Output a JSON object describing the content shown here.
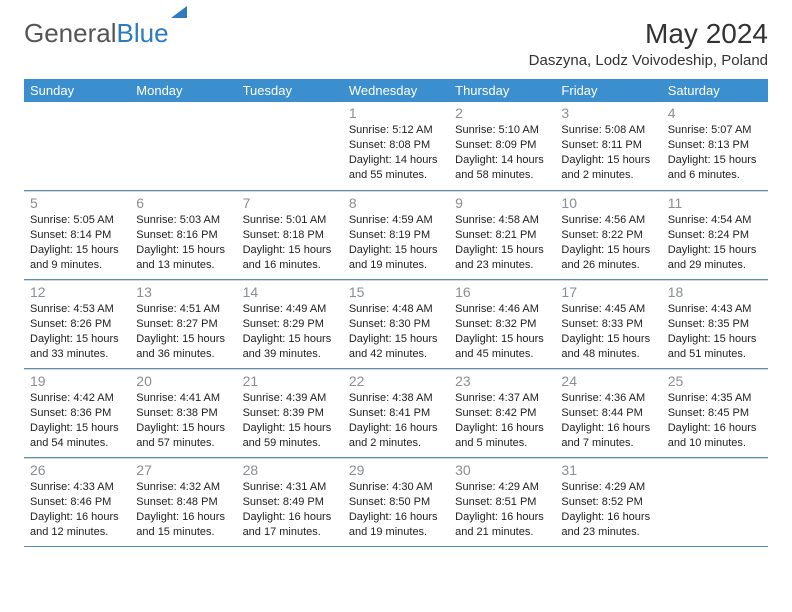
{
  "logo": {
    "part1": "General",
    "part2": "Blue"
  },
  "title": "May 2024",
  "location": "Daszyna, Lodz Voivodeship, Poland",
  "day_headers": [
    "Sunday",
    "Monday",
    "Tuesday",
    "Wednesday",
    "Thursday",
    "Friday",
    "Saturday"
  ],
  "colors": {
    "header_bg": "#3b8fcf",
    "header_text": "#ffffff",
    "daynum": "#8a8f93",
    "text": "#222222",
    "border": "#5a8fb5",
    "cell_border": "#d0d8de"
  },
  "weeks": [
    [
      null,
      null,
      null,
      {
        "n": "1",
        "sr": "5:12 AM",
        "ss": "8:08 PM",
        "dl": "14 hours and 55 minutes."
      },
      {
        "n": "2",
        "sr": "5:10 AM",
        "ss": "8:09 PM",
        "dl": "14 hours and 58 minutes."
      },
      {
        "n": "3",
        "sr": "5:08 AM",
        "ss": "8:11 PM",
        "dl": "15 hours and 2 minutes."
      },
      {
        "n": "4",
        "sr": "5:07 AM",
        "ss": "8:13 PM",
        "dl": "15 hours and 6 minutes."
      }
    ],
    [
      {
        "n": "5",
        "sr": "5:05 AM",
        "ss": "8:14 PM",
        "dl": "15 hours and 9 minutes."
      },
      {
        "n": "6",
        "sr": "5:03 AM",
        "ss": "8:16 PM",
        "dl": "15 hours and 13 minutes."
      },
      {
        "n": "7",
        "sr": "5:01 AM",
        "ss": "8:18 PM",
        "dl": "15 hours and 16 minutes."
      },
      {
        "n": "8",
        "sr": "4:59 AM",
        "ss": "8:19 PM",
        "dl": "15 hours and 19 minutes."
      },
      {
        "n": "9",
        "sr": "4:58 AM",
        "ss": "8:21 PM",
        "dl": "15 hours and 23 minutes."
      },
      {
        "n": "10",
        "sr": "4:56 AM",
        "ss": "8:22 PM",
        "dl": "15 hours and 26 minutes."
      },
      {
        "n": "11",
        "sr": "4:54 AM",
        "ss": "8:24 PM",
        "dl": "15 hours and 29 minutes."
      }
    ],
    [
      {
        "n": "12",
        "sr": "4:53 AM",
        "ss": "8:26 PM",
        "dl": "15 hours and 33 minutes."
      },
      {
        "n": "13",
        "sr": "4:51 AM",
        "ss": "8:27 PM",
        "dl": "15 hours and 36 minutes."
      },
      {
        "n": "14",
        "sr": "4:49 AM",
        "ss": "8:29 PM",
        "dl": "15 hours and 39 minutes."
      },
      {
        "n": "15",
        "sr": "4:48 AM",
        "ss": "8:30 PM",
        "dl": "15 hours and 42 minutes."
      },
      {
        "n": "16",
        "sr": "4:46 AM",
        "ss": "8:32 PM",
        "dl": "15 hours and 45 minutes."
      },
      {
        "n": "17",
        "sr": "4:45 AM",
        "ss": "8:33 PM",
        "dl": "15 hours and 48 minutes."
      },
      {
        "n": "18",
        "sr": "4:43 AM",
        "ss": "8:35 PM",
        "dl": "15 hours and 51 minutes."
      }
    ],
    [
      {
        "n": "19",
        "sr": "4:42 AM",
        "ss": "8:36 PM",
        "dl": "15 hours and 54 minutes."
      },
      {
        "n": "20",
        "sr": "4:41 AM",
        "ss": "8:38 PM",
        "dl": "15 hours and 57 minutes."
      },
      {
        "n": "21",
        "sr": "4:39 AM",
        "ss": "8:39 PM",
        "dl": "15 hours and 59 minutes."
      },
      {
        "n": "22",
        "sr": "4:38 AM",
        "ss": "8:41 PM",
        "dl": "16 hours and 2 minutes."
      },
      {
        "n": "23",
        "sr": "4:37 AM",
        "ss": "8:42 PM",
        "dl": "16 hours and 5 minutes."
      },
      {
        "n": "24",
        "sr": "4:36 AM",
        "ss": "8:44 PM",
        "dl": "16 hours and 7 minutes."
      },
      {
        "n": "25",
        "sr": "4:35 AM",
        "ss": "8:45 PM",
        "dl": "16 hours and 10 minutes."
      }
    ],
    [
      {
        "n": "26",
        "sr": "4:33 AM",
        "ss": "8:46 PM",
        "dl": "16 hours and 12 minutes."
      },
      {
        "n": "27",
        "sr": "4:32 AM",
        "ss": "8:48 PM",
        "dl": "16 hours and 15 minutes."
      },
      {
        "n": "28",
        "sr": "4:31 AM",
        "ss": "8:49 PM",
        "dl": "16 hours and 17 minutes."
      },
      {
        "n": "29",
        "sr": "4:30 AM",
        "ss": "8:50 PM",
        "dl": "16 hours and 19 minutes."
      },
      {
        "n": "30",
        "sr": "4:29 AM",
        "ss": "8:51 PM",
        "dl": "16 hours and 21 minutes."
      },
      {
        "n": "31",
        "sr": "4:29 AM",
        "ss": "8:52 PM",
        "dl": "16 hours and 23 minutes."
      },
      null
    ]
  ],
  "labels": {
    "sunrise": "Sunrise:",
    "sunset": "Sunset:",
    "daylight": "Daylight:"
  }
}
